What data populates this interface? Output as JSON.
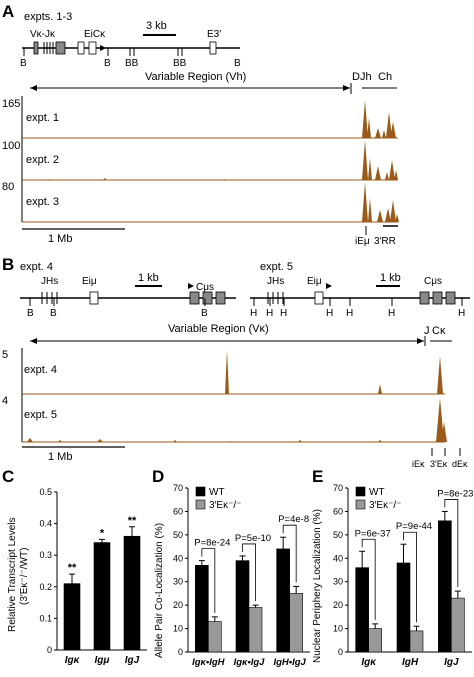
{
  "panelA": {
    "label": "A",
    "expts_label": "expts. 1-3",
    "scale_3kb": "3 kb",
    "genes": {
      "vk_jk": "Vκ-Jκ",
      "ei_ck": "EiCκ",
      "e3": "E3′"
    },
    "b_label": "B",
    "bb_label": "BB",
    "variable_region": "Variable Region (Vh)",
    "djh": "DJh",
    "ch": "Ch",
    "track_maxes": [
      "165",
      "100",
      "80"
    ],
    "tracks": [
      "expt. 1",
      "expt. 2",
      "expt. 3"
    ],
    "scale_1mb": "1 Mb",
    "iem": "iEμ",
    "rr3": "3′RR"
  },
  "panelB": {
    "label": "B",
    "expt4": "expt. 4",
    "expt5": "expt. 5",
    "jhs": "JHs",
    "eiu": "Eiμ",
    "cus": "Cμs",
    "scale_1kb": "1 kb",
    "b_label": "B",
    "h_label": "H",
    "variable_region": "Variable Region (Vκ)",
    "j": "J",
    "ck": "Cκ",
    "track_maxes": [
      "5",
      "4"
    ],
    "tracks": [
      "expt. 4",
      "expt. 5"
    ],
    "scale_1mb": "1 Mb",
    "iek": "iEκ",
    "e3k": "3′Eκ",
    "dek": "dEκ"
  },
  "panelC": {
    "label": "C",
    "ylabel": "Relative Transcript Levels",
    "ylabel2": "(3′Eκ⁻/⁻/WT)",
    "yticks": [
      "0",
      "0.1",
      "0.2",
      "0.3",
      "0.4",
      "0.5"
    ],
    "categories": [
      "Igκ",
      "Igμ",
      "IgJ"
    ],
    "sig": [
      "**",
      "*",
      "**"
    ]
  },
  "panelD": {
    "label": "D",
    "ylabel": "Allele Pair Co-Localization (%)",
    "yticks": [
      "0",
      "10",
      "20",
      "30",
      "40",
      "50",
      "60",
      "70"
    ],
    "legend": [
      "WT",
      "3′Eκ⁻/⁻"
    ],
    "categories": [
      "Igκ•IgH",
      "Igκ•IgJ",
      "IgH•IgJ"
    ],
    "pvals": [
      "P=8e-24",
      "P=5e-10",
      "P=4e-8"
    ]
  },
  "panelE": {
    "label": "E",
    "ylabel": "Nuclear Periphery Localization (%)",
    "yticks": [
      "0",
      "10",
      "20",
      "30",
      "40",
      "50",
      "60",
      "70"
    ],
    "legend": [
      "WT",
      "3′Eκ⁻/⁻"
    ],
    "categories": [
      "Igκ",
      "IgH",
      "IgJ"
    ],
    "pvals": [
      "P=6e-37",
      "P=9e-44",
      "P=8e-23"
    ]
  },
  "chart_data": [
    {
      "type": "bar",
      "categories": [
        "Igκ",
        "Igμ",
        "IgJ"
      ],
      "values": [
        0.21,
        0.34,
        0.36
      ],
      "errors": [
        0.03,
        0.01,
        0.03
      ],
      "ylabel": "Relative Transcript Levels (3′Eκ⁻/⁻/WT)",
      "ylim": [
        0,
        0.5
      ]
    },
    {
      "type": "bar",
      "categories": [
        "Igκ•IgH",
        "Igκ•IgJ",
        "IgH•IgJ"
      ],
      "series": [
        {
          "name": "WT",
          "values": [
            37,
            39,
            44
          ],
          "errors": [
            2,
            2,
            5
          ],
          "color": "#000000"
        },
        {
          "name": "3′Eκ⁻/⁻",
          "values": [
            13,
            19,
            25
          ],
          "errors": [
            2,
            1,
            3
          ],
          "color": "#999999"
        }
      ],
      "ylabel": "Allele Pair Co-Localization (%)",
      "ylim": [
        0,
        70
      ],
      "legend": "top-left"
    },
    {
      "type": "bar",
      "categories": [
        "Igκ",
        "IgH",
        "IgJ"
      ],
      "series": [
        {
          "name": "WT",
          "values": [
            36,
            38,
            56
          ],
          "errors": [
            7,
            8,
            4
          ],
          "color": "#000000"
        },
        {
          "name": "3′Eκ⁻/⁻",
          "values": [
            10,
            9,
            23
          ],
          "errors": [
            2,
            2,
            3
          ],
          "color": "#999999"
        }
      ],
      "ylabel": "Nuclear Periphery Localization (%)",
      "ylim": [
        0,
        70
      ],
      "legend": "top-left"
    }
  ]
}
